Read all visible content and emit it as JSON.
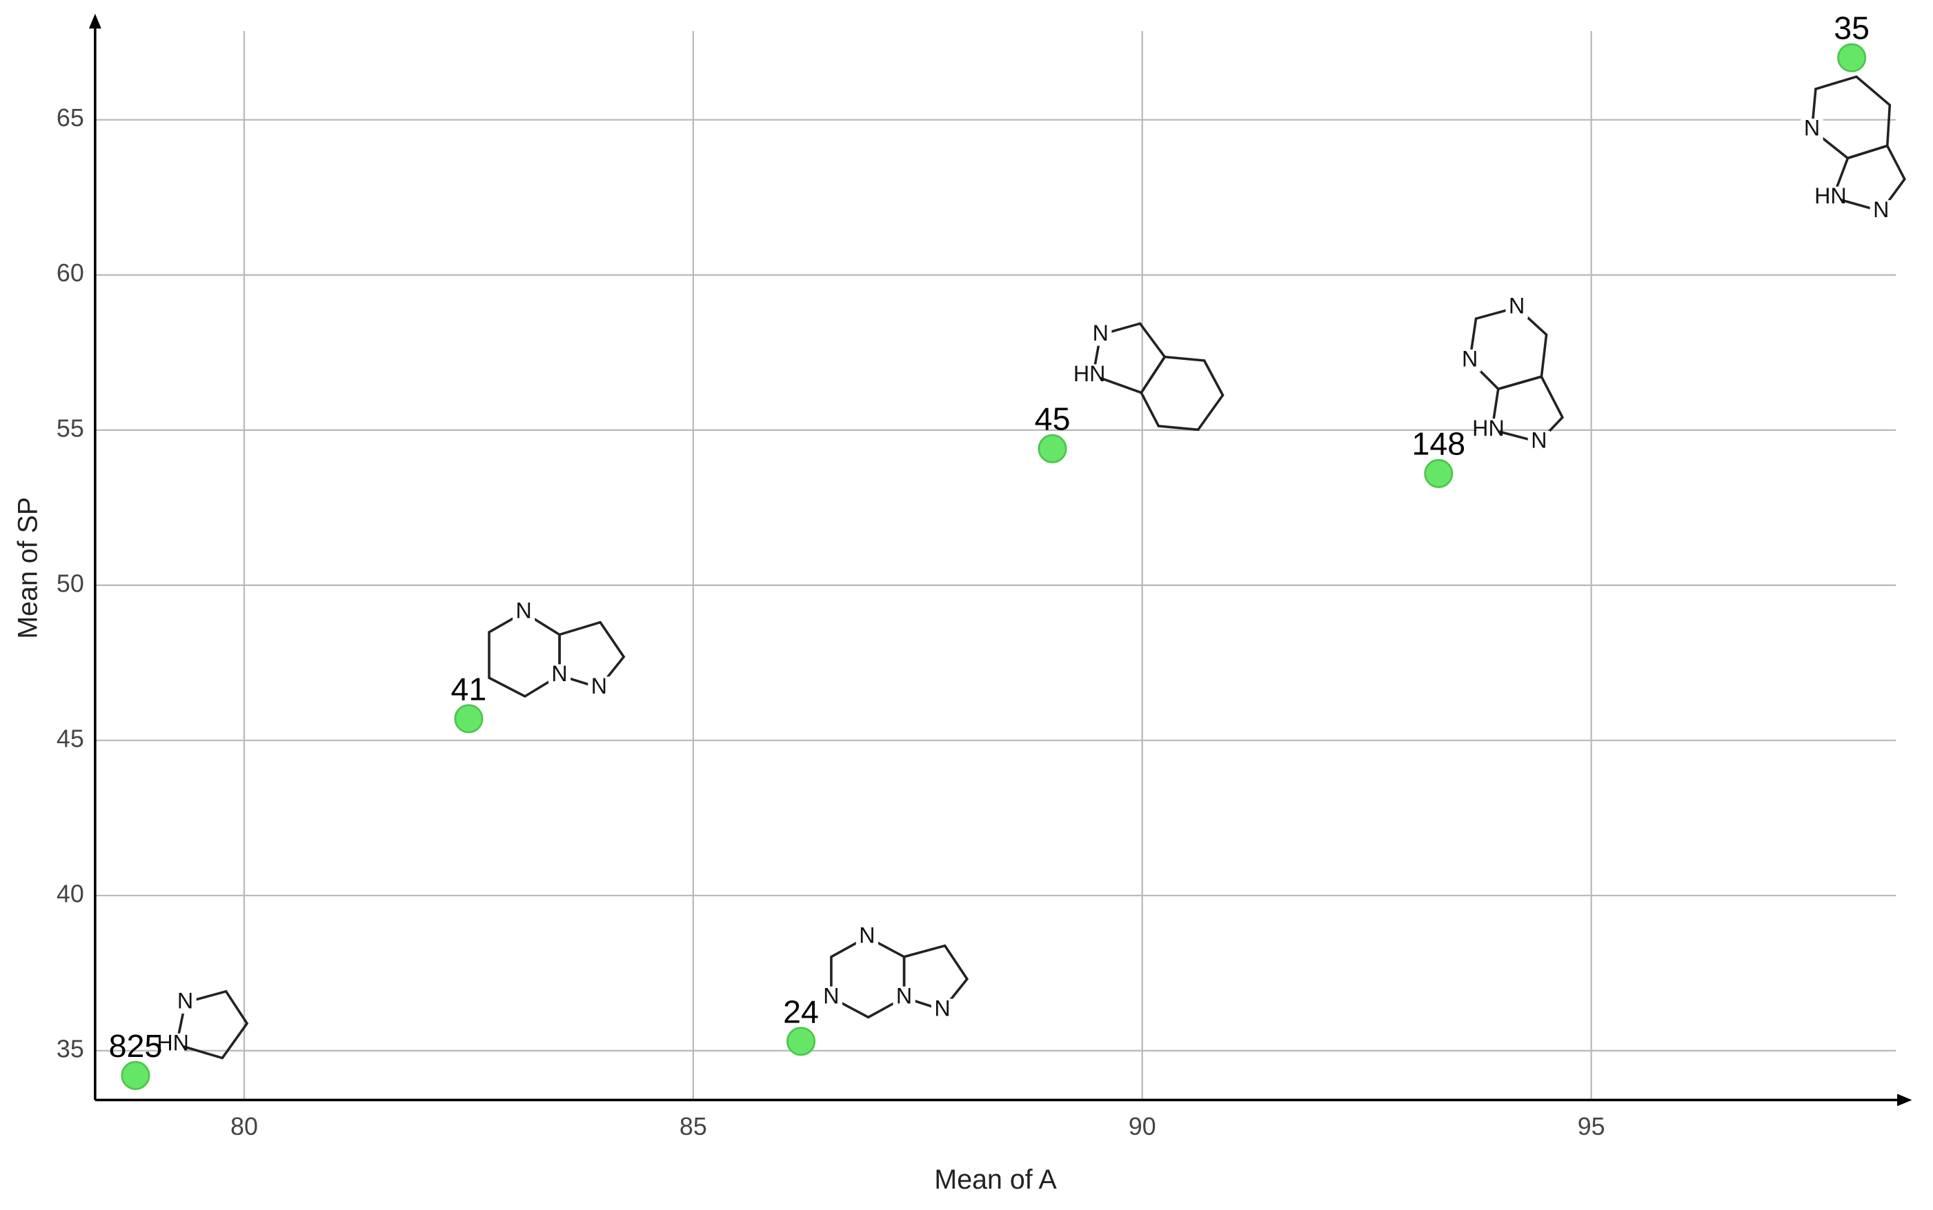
{
  "chart_data": {
    "type": "scatter",
    "x_label": "Mean of A",
    "y_label": "Mean of SP",
    "x": [
      78.79,
      82.5,
      86.2,
      89.0,
      93.3,
      97.9
    ],
    "series": [
      {
        "color": "#66e666",
        "values": [
          34.2,
          45.7,
          35.3,
          54.4,
          53.6,
          67.0
        ]
      }
    ],
    "point_labels": [
      "825",
      "41",
      "24",
      "45",
      "148",
      "35"
    ],
    "structures": [
      {
        "atoms": [
          "N",
          "HN"
        ]
      },
      {
        "atoms": [
          "N",
          "N",
          "N"
        ]
      },
      {
        "atoms": [
          "N",
          "N",
          "N",
          "N"
        ]
      },
      {
        "atoms": [
          "N",
          "HN"
        ]
      },
      {
        "atoms": [
          "N",
          "N",
          "N",
          "HN"
        ]
      },
      {
        "atoms": [
          "N",
          "HN",
          "N"
        ]
      }
    ],
    "xlim": [
      78.34,
      98.53
    ],
    "ylim": [
      33.41,
      68.26
    ],
    "xticks": [
      80,
      85,
      90,
      95
    ],
    "yticks": [
      35,
      40,
      45,
      50,
      55,
      60,
      65
    ],
    "grid": true
  }
}
